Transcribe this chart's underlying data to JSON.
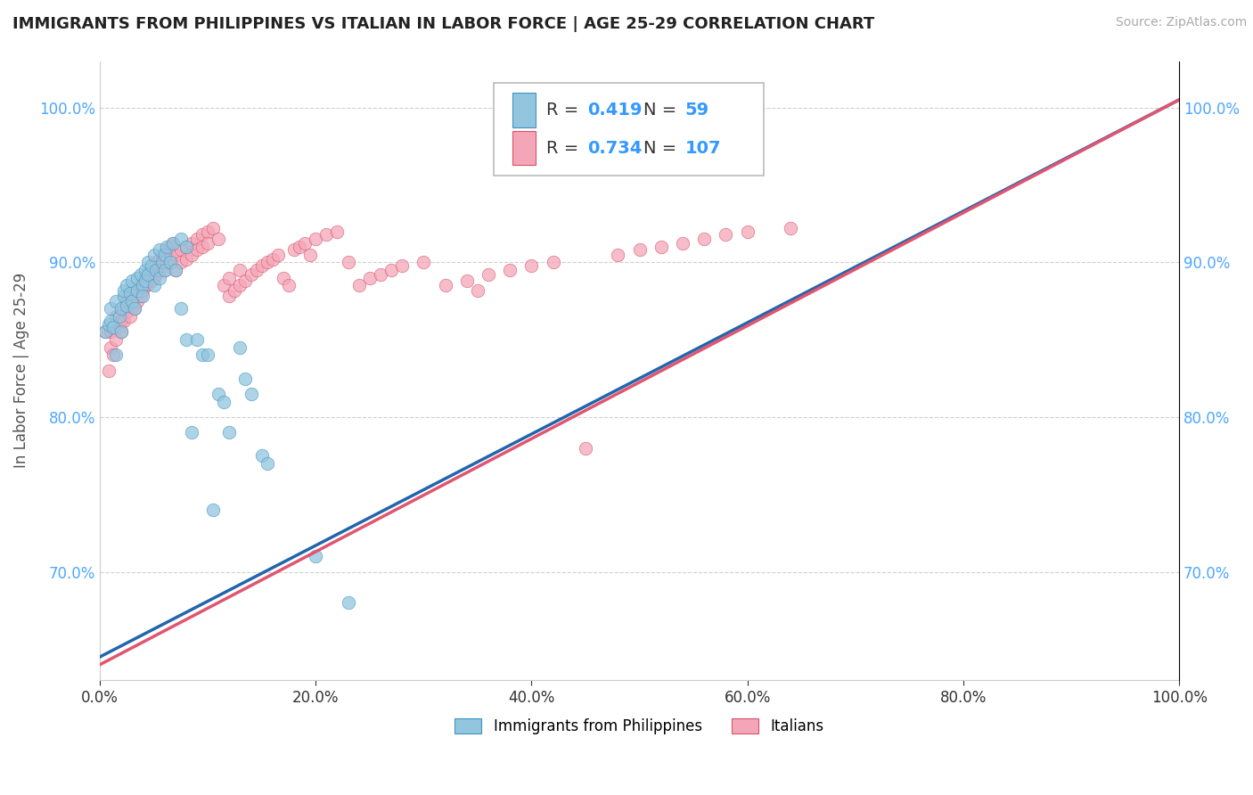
{
  "title": "IMMIGRANTS FROM PHILIPPINES VS ITALIAN IN LABOR FORCE | AGE 25-29 CORRELATION CHART",
  "source": "Source: ZipAtlas.com",
  "ylabel": "In Labor Force | Age 25-29",
  "xlim": [
    0.0,
    1.0
  ],
  "ylim": [
    0.63,
    1.03
  ],
  "xticks": [
    0.0,
    0.2,
    0.4,
    0.6,
    0.8,
    1.0
  ],
  "xtick_labels": [
    "0.0%",
    "20.0%",
    "40.0%",
    "60.0%",
    "80.0%",
    "100.0%"
  ],
  "yticks": [
    0.7,
    0.8,
    0.9,
    1.0
  ],
  "ytick_labels": [
    "70.0%",
    "80.0%",
    "90.0%",
    "100.0%"
  ],
  "blue_color": "#92c5de",
  "blue_edge_color": "#4393c3",
  "pink_color": "#f4a6b8",
  "pink_edge_color": "#d6546a",
  "blue_line_color": "#2166ac",
  "pink_line_color": "#e05570",
  "R_blue": 0.419,
  "N_blue": 59,
  "R_pink": 0.734,
  "N_pink": 107,
  "legend_label_blue": "Immigrants from Philippines",
  "legend_label_pink": "Italians",
  "blue_scatter": [
    [
      0.005,
      0.855
    ],
    [
      0.008,
      0.86
    ],
    [
      0.01,
      0.862
    ],
    [
      0.01,
      0.87
    ],
    [
      0.012,
      0.858
    ],
    [
      0.015,
      0.84
    ],
    [
      0.015,
      0.875
    ],
    [
      0.018,
      0.865
    ],
    [
      0.02,
      0.855
    ],
    [
      0.02,
      0.87
    ],
    [
      0.022,
      0.878
    ],
    [
      0.022,
      0.882
    ],
    [
      0.025,
      0.885
    ],
    [
      0.025,
      0.872
    ],
    [
      0.028,
      0.88
    ],
    [
      0.03,
      0.888
    ],
    [
      0.03,
      0.875
    ],
    [
      0.032,
      0.87
    ],
    [
      0.035,
      0.89
    ],
    [
      0.035,
      0.882
    ],
    [
      0.038,
      0.892
    ],
    [
      0.04,
      0.885
    ],
    [
      0.04,
      0.878
    ],
    [
      0.042,
      0.895
    ],
    [
      0.042,
      0.888
    ],
    [
      0.045,
      0.9
    ],
    [
      0.045,
      0.892
    ],
    [
      0.048,
      0.898
    ],
    [
      0.05,
      0.885
    ],
    [
      0.05,
      0.905
    ],
    [
      0.052,
      0.895
    ],
    [
      0.055,
      0.89
    ],
    [
      0.055,
      0.908
    ],
    [
      0.058,
      0.9
    ],
    [
      0.06,
      0.895
    ],
    [
      0.06,
      0.905
    ],
    [
      0.062,
      0.91
    ],
    [
      0.065,
      0.9
    ],
    [
      0.068,
      0.912
    ],
    [
      0.07,
      0.895
    ],
    [
      0.075,
      0.915
    ],
    [
      0.075,
      0.87
    ],
    [
      0.08,
      0.91
    ],
    [
      0.08,
      0.85
    ],
    [
      0.085,
      0.79
    ],
    [
      0.09,
      0.85
    ],
    [
      0.095,
      0.84
    ],
    [
      0.1,
      0.84
    ],
    [
      0.105,
      0.74
    ],
    [
      0.11,
      0.815
    ],
    [
      0.115,
      0.81
    ],
    [
      0.12,
      0.79
    ],
    [
      0.13,
      0.845
    ],
    [
      0.135,
      0.825
    ],
    [
      0.14,
      0.815
    ],
    [
      0.15,
      0.775
    ],
    [
      0.155,
      0.77
    ],
    [
      0.2,
      0.71
    ],
    [
      0.23,
      0.68
    ]
  ],
  "pink_scatter": [
    [
      0.005,
      0.855
    ],
    [
      0.008,
      0.83
    ],
    [
      0.01,
      0.855
    ],
    [
      0.01,
      0.845
    ],
    [
      0.012,
      0.84
    ],
    [
      0.015,
      0.85
    ],
    [
      0.015,
      0.865
    ],
    [
      0.018,
      0.858
    ],
    [
      0.02,
      0.862
    ],
    [
      0.02,
      0.855
    ],
    [
      0.022,
      0.87
    ],
    [
      0.022,
      0.862
    ],
    [
      0.025,
      0.875
    ],
    [
      0.025,
      0.868
    ],
    [
      0.028,
      0.872
    ],
    [
      0.028,
      0.865
    ],
    [
      0.03,
      0.88
    ],
    [
      0.03,
      0.872
    ],
    [
      0.032,
      0.878
    ],
    [
      0.032,
      0.87
    ],
    [
      0.035,
      0.882
    ],
    [
      0.035,
      0.875
    ],
    [
      0.038,
      0.885
    ],
    [
      0.038,
      0.878
    ],
    [
      0.04,
      0.888
    ],
    [
      0.04,
      0.882
    ],
    [
      0.042,
      0.89
    ],
    [
      0.042,
      0.885
    ],
    [
      0.045,
      0.892
    ],
    [
      0.045,
      0.886
    ],
    [
      0.048,
      0.895
    ],
    [
      0.048,
      0.888
    ],
    [
      0.05,
      0.898
    ],
    [
      0.05,
      0.89
    ],
    [
      0.052,
      0.9
    ],
    [
      0.052,
      0.892
    ],
    [
      0.055,
      0.902
    ],
    [
      0.055,
      0.895
    ],
    [
      0.058,
      0.905
    ],
    [
      0.058,
      0.898
    ],
    [
      0.06,
      0.895
    ],
    [
      0.062,
      0.908
    ],
    [
      0.062,
      0.9
    ],
    [
      0.065,
      0.91
    ],
    [
      0.065,
      0.902
    ],
    [
      0.068,
      0.912
    ],
    [
      0.07,
      0.905
    ],
    [
      0.07,
      0.895
    ],
    [
      0.075,
      0.908
    ],
    [
      0.075,
      0.9
    ],
    [
      0.08,
      0.91
    ],
    [
      0.08,
      0.902
    ],
    [
      0.085,
      0.912
    ],
    [
      0.085,
      0.905
    ],
    [
      0.09,
      0.915
    ],
    [
      0.09,
      0.908
    ],
    [
      0.095,
      0.918
    ],
    [
      0.095,
      0.91
    ],
    [
      0.1,
      0.92
    ],
    [
      0.1,
      0.912
    ],
    [
      0.105,
      0.922
    ],
    [
      0.11,
      0.915
    ],
    [
      0.115,
      0.885
    ],
    [
      0.12,
      0.89
    ],
    [
      0.12,
      0.878
    ],
    [
      0.125,
      0.882
    ],
    [
      0.13,
      0.885
    ],
    [
      0.13,
      0.895
    ],
    [
      0.135,
      0.888
    ],
    [
      0.14,
      0.892
    ],
    [
      0.145,
      0.895
    ],
    [
      0.15,
      0.898
    ],
    [
      0.155,
      0.9
    ],
    [
      0.16,
      0.902
    ],
    [
      0.165,
      0.905
    ],
    [
      0.17,
      0.89
    ],
    [
      0.175,
      0.885
    ],
    [
      0.18,
      0.908
    ],
    [
      0.185,
      0.91
    ],
    [
      0.19,
      0.912
    ],
    [
      0.195,
      0.905
    ],
    [
      0.2,
      0.915
    ],
    [
      0.21,
      0.918
    ],
    [
      0.22,
      0.92
    ],
    [
      0.23,
      0.9
    ],
    [
      0.24,
      0.885
    ],
    [
      0.25,
      0.89
    ],
    [
      0.26,
      0.892
    ],
    [
      0.27,
      0.895
    ],
    [
      0.28,
      0.898
    ],
    [
      0.3,
      0.9
    ],
    [
      0.32,
      0.885
    ],
    [
      0.34,
      0.888
    ],
    [
      0.35,
      0.882
    ],
    [
      0.36,
      0.892
    ],
    [
      0.38,
      0.895
    ],
    [
      0.4,
      0.898
    ],
    [
      0.42,
      0.9
    ],
    [
      0.45,
      0.78
    ],
    [
      0.48,
      0.905
    ],
    [
      0.5,
      0.908
    ],
    [
      0.52,
      0.91
    ],
    [
      0.54,
      0.912
    ],
    [
      0.56,
      0.915
    ],
    [
      0.58,
      0.918
    ],
    [
      0.6,
      0.92
    ],
    [
      0.64,
      0.922
    ]
  ],
  "blue_line_pts": [
    [
      0.0,
      0.645
    ],
    [
      1.0,
      1.005
    ]
  ],
  "pink_line_pts": [
    [
      0.0,
      0.64
    ],
    [
      1.0,
      1.005
    ]
  ]
}
